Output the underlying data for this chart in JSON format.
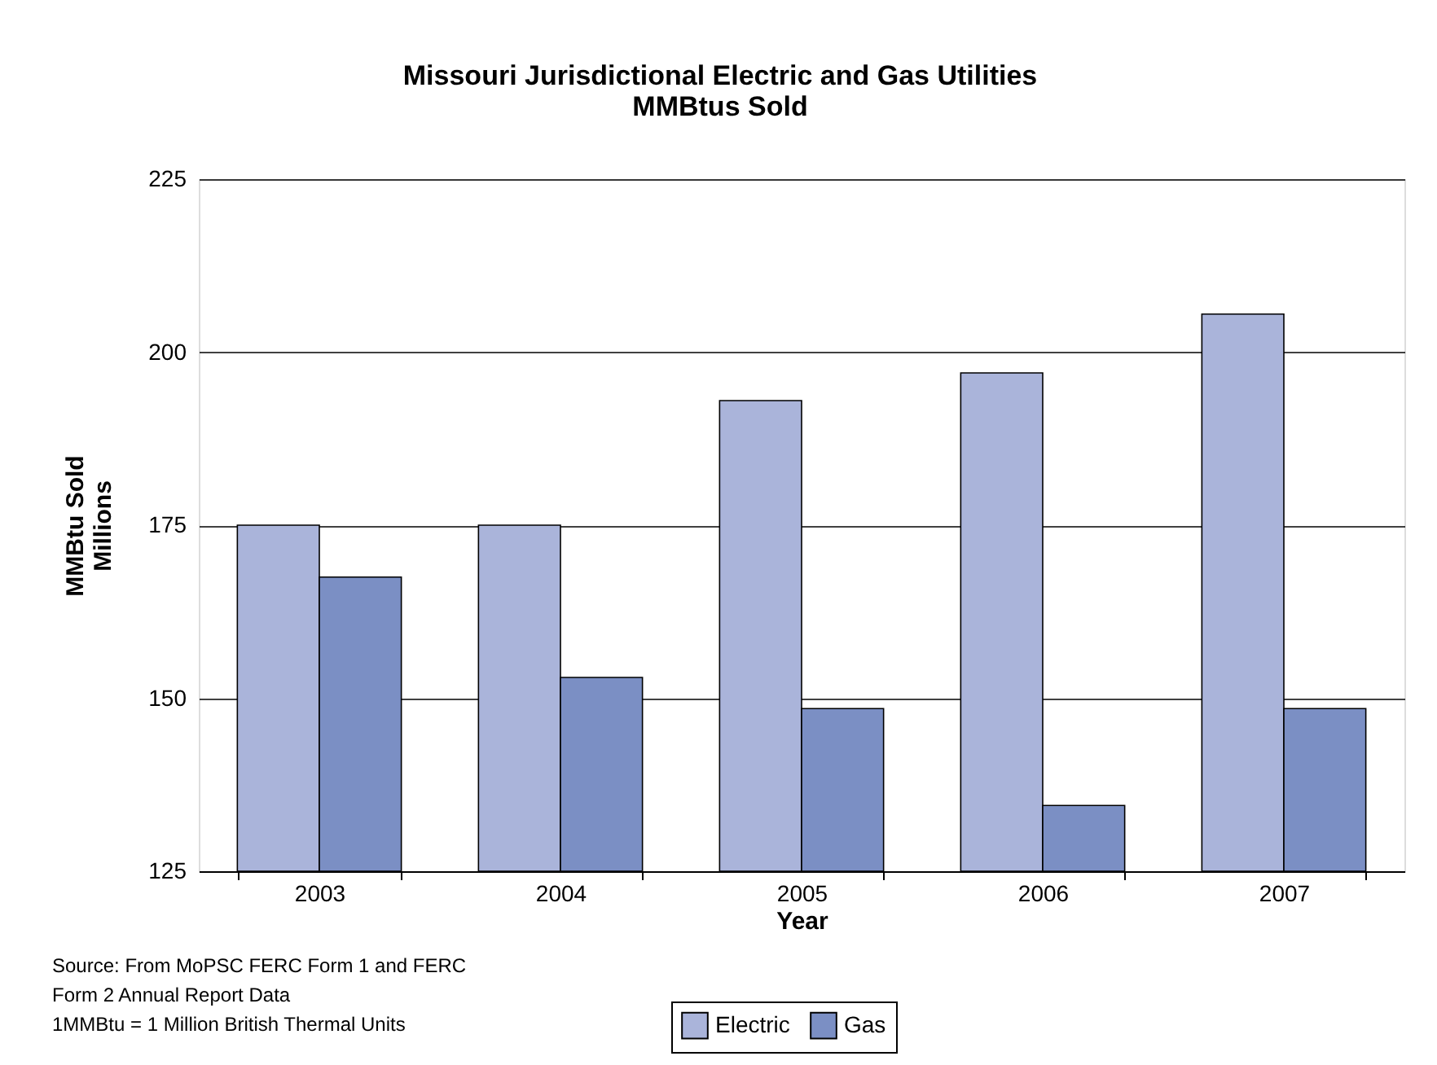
{
  "chart_data": {
    "type": "bar",
    "title": "Missouri Jurisdictional Electric and Gas Utilities\nMMBtus Sold",
    "xlabel": "Year",
    "ylabel": "MMBtu Sold\nMillions",
    "categories": [
      "2003",
      "2004",
      "2005",
      "2006",
      "2007"
    ],
    "series": [
      {
        "name": "Electric",
        "color": "#aab4da",
        "values": [
          175,
          175,
          193,
          197,
          205.5
        ]
      },
      {
        "name": "Gas",
        "color": "#7b8fc4",
        "values": [
          167.5,
          153,
          148.5,
          134.5,
          148.5
        ]
      }
    ],
    "ylim": [
      125,
      225
    ],
    "yticks": [
      125,
      150,
      175,
      200,
      225
    ],
    "grid": "y",
    "legend": "bottom",
    "annotations": [
      "Source: From MoPSC FERC Form 1 and FERC",
      "Form 2 Annual Report Data",
      "1MMBtu = 1 Million British Thermal Units"
    ]
  }
}
